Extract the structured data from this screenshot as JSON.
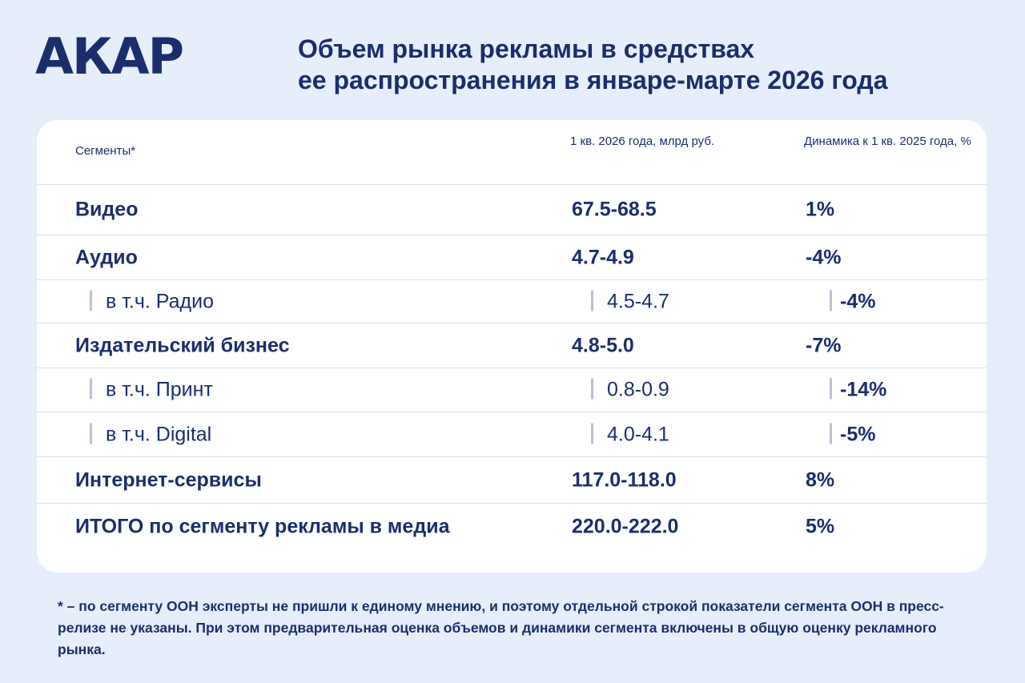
{
  "logo": "АКАР",
  "title": {
    "line1": "Объем рынка рекламы в средствах",
    "line2": "ее распространения в январе-марте 2026 года"
  },
  "table": {
    "headers": {
      "segment": "Сегменты*",
      "volume": "1 кв. 2026 года, млрд руб.",
      "dynamics": "Динамика к 1 кв. 2025 года, %"
    },
    "rows": [
      {
        "segment": "Видео",
        "volume": "67.5-68.5",
        "dynamics": "1%",
        "sub": false
      },
      {
        "segment": "Аудио",
        "volume": "4.7-4.9",
        "dynamics": "-4%",
        "sub": false
      },
      {
        "segment": "в т.ч. Радио",
        "volume": "4.5-4.7",
        "dynamics": "-4%",
        "sub": true
      },
      {
        "segment": "Издательский бизнес",
        "volume": "4.8-5.0",
        "dynamics": "-7%",
        "sub": false
      },
      {
        "segment": "в т.ч. Принт",
        "volume": "0.8-0.9",
        "dynamics": "-14%",
        "sub": true
      },
      {
        "segment": "в т.ч. Digital",
        "volume": "4.0-4.1",
        "dynamics": "-5%",
        "sub": true
      },
      {
        "segment": "Интернет-сервисы",
        "volume": "117.0-118.0",
        "dynamics": "8%",
        "sub": false
      },
      {
        "segment": "ИТОГО по сегменту рекламы в медиа",
        "volume": "220.0-222.0",
        "dynamics": "5%",
        "sub": false
      }
    ]
  },
  "footnote": "* – по сегменту ООН эксперты не пришли к единому мнению, и поэтому отдельной строкой показатели сегмента ООН в пресс-релизе не указаны. При этом предварительная оценка объемов и динамики сегмента включены в общую оценку рекламного рынка.",
  "colors": {
    "background": "#e6eefb",
    "text": "#1a2e6e",
    "card": "#ffffff",
    "divider": "#d9e0ec"
  }
}
